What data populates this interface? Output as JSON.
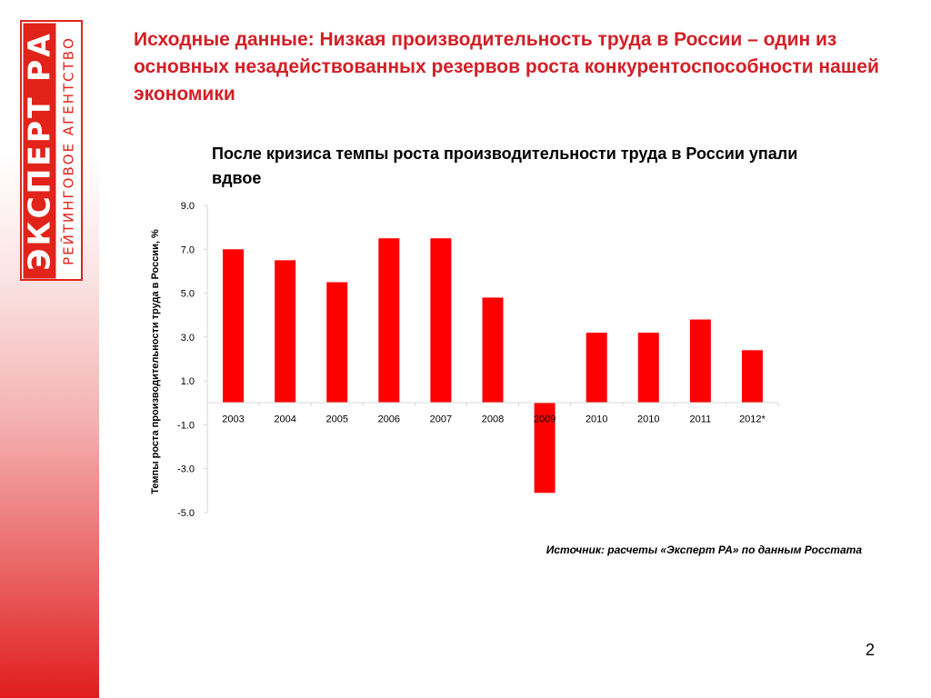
{
  "logo": {
    "main_text": "ЭКСПЕРТ РА",
    "sub_text": "РЕЙТИНГОВОЕ АГЕНТСТВО"
  },
  "slide": {
    "heading": "Исходные данные: Низкая производительность труда в России – один из основных незадействованных резервов роста конкурентоспособности нашей экономики",
    "source": "Источник: расчеты «Эксперт РА» по данным Росстата",
    "page_number": "2"
  },
  "colors": {
    "accent": "#d31f26",
    "bar": "#ff0000",
    "logo_red": "#e2231a"
  },
  "chart_data": {
    "type": "bar",
    "title": "После кризиса темпы роста производительности труда в России упали вдвое",
    "ylabel": "Темпы роста производительности труда в России, %",
    "xlabel": "",
    "categories": [
      "2003",
      "2004",
      "2005",
      "2006",
      "2007",
      "2008",
      "2009",
      "2010",
      "2010",
      "2011",
      "2012*"
    ],
    "values": [
      7.0,
      6.5,
      5.5,
      7.5,
      7.5,
      4.8,
      -4.1,
      3.2,
      3.2,
      3.8,
      2.4
    ],
    "ylim": [
      -5.0,
      9.0
    ],
    "yticks": [
      9.0,
      7.0,
      5.0,
      3.0,
      1.0,
      -1.0,
      -3.0,
      -5.0
    ],
    "grid": false,
    "legend": "none"
  }
}
